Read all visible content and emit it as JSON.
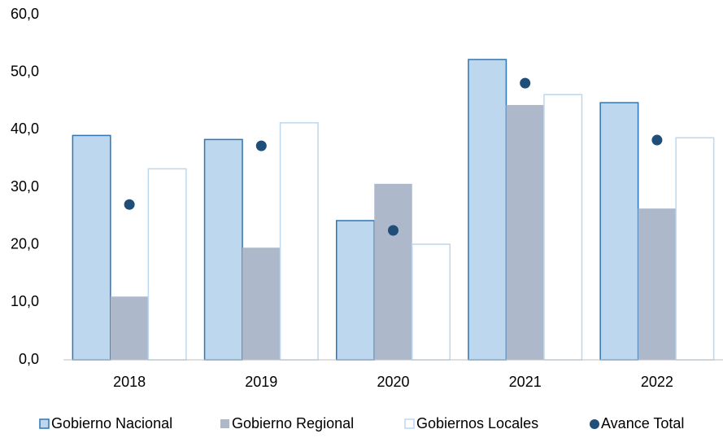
{
  "chart_data": {
    "type": "bar",
    "categories": [
      "2018",
      "2019",
      "2020",
      "2021",
      "2022"
    ],
    "series": [
      {
        "name": "Gobierno Nacional",
        "color": "#bdd7ee",
        "stroke": "#2e75b6",
        "values": [
          39.0,
          38.3,
          24.2,
          52.2,
          44.7
        ]
      },
      {
        "name": "Gobierno Regional",
        "color": "#adb9ca",
        "values": [
          11.0,
          19.5,
          30.6,
          44.3,
          26.3
        ]
      },
      {
        "name": "Gobiernos Locales",
        "color": "#ffffff",
        "stroke": "#bdd7ee",
        "values": [
          33.2,
          41.2,
          20.1,
          46.1,
          38.6
        ]
      },
      {
        "name": "Avance Total",
        "type": "scatter",
        "color": "#1f4e79",
        "values": [
          27.0,
          37.2,
          22.5,
          48.1,
          38.2
        ]
      }
    ],
    "ylim": [
      0,
      60
    ],
    "yticks": [
      {
        "value": 0,
        "label": "0,0"
      },
      {
        "value": 10,
        "label": "10,0"
      },
      {
        "value": 20,
        "label": "20,0"
      },
      {
        "value": 30,
        "label": "30,0"
      },
      {
        "value": 40,
        "label": "40,0"
      },
      {
        "value": 50,
        "label": "50,0"
      },
      {
        "value": 60,
        "label": "60,0"
      }
    ],
    "grid": false,
    "legend": "bottom"
  }
}
